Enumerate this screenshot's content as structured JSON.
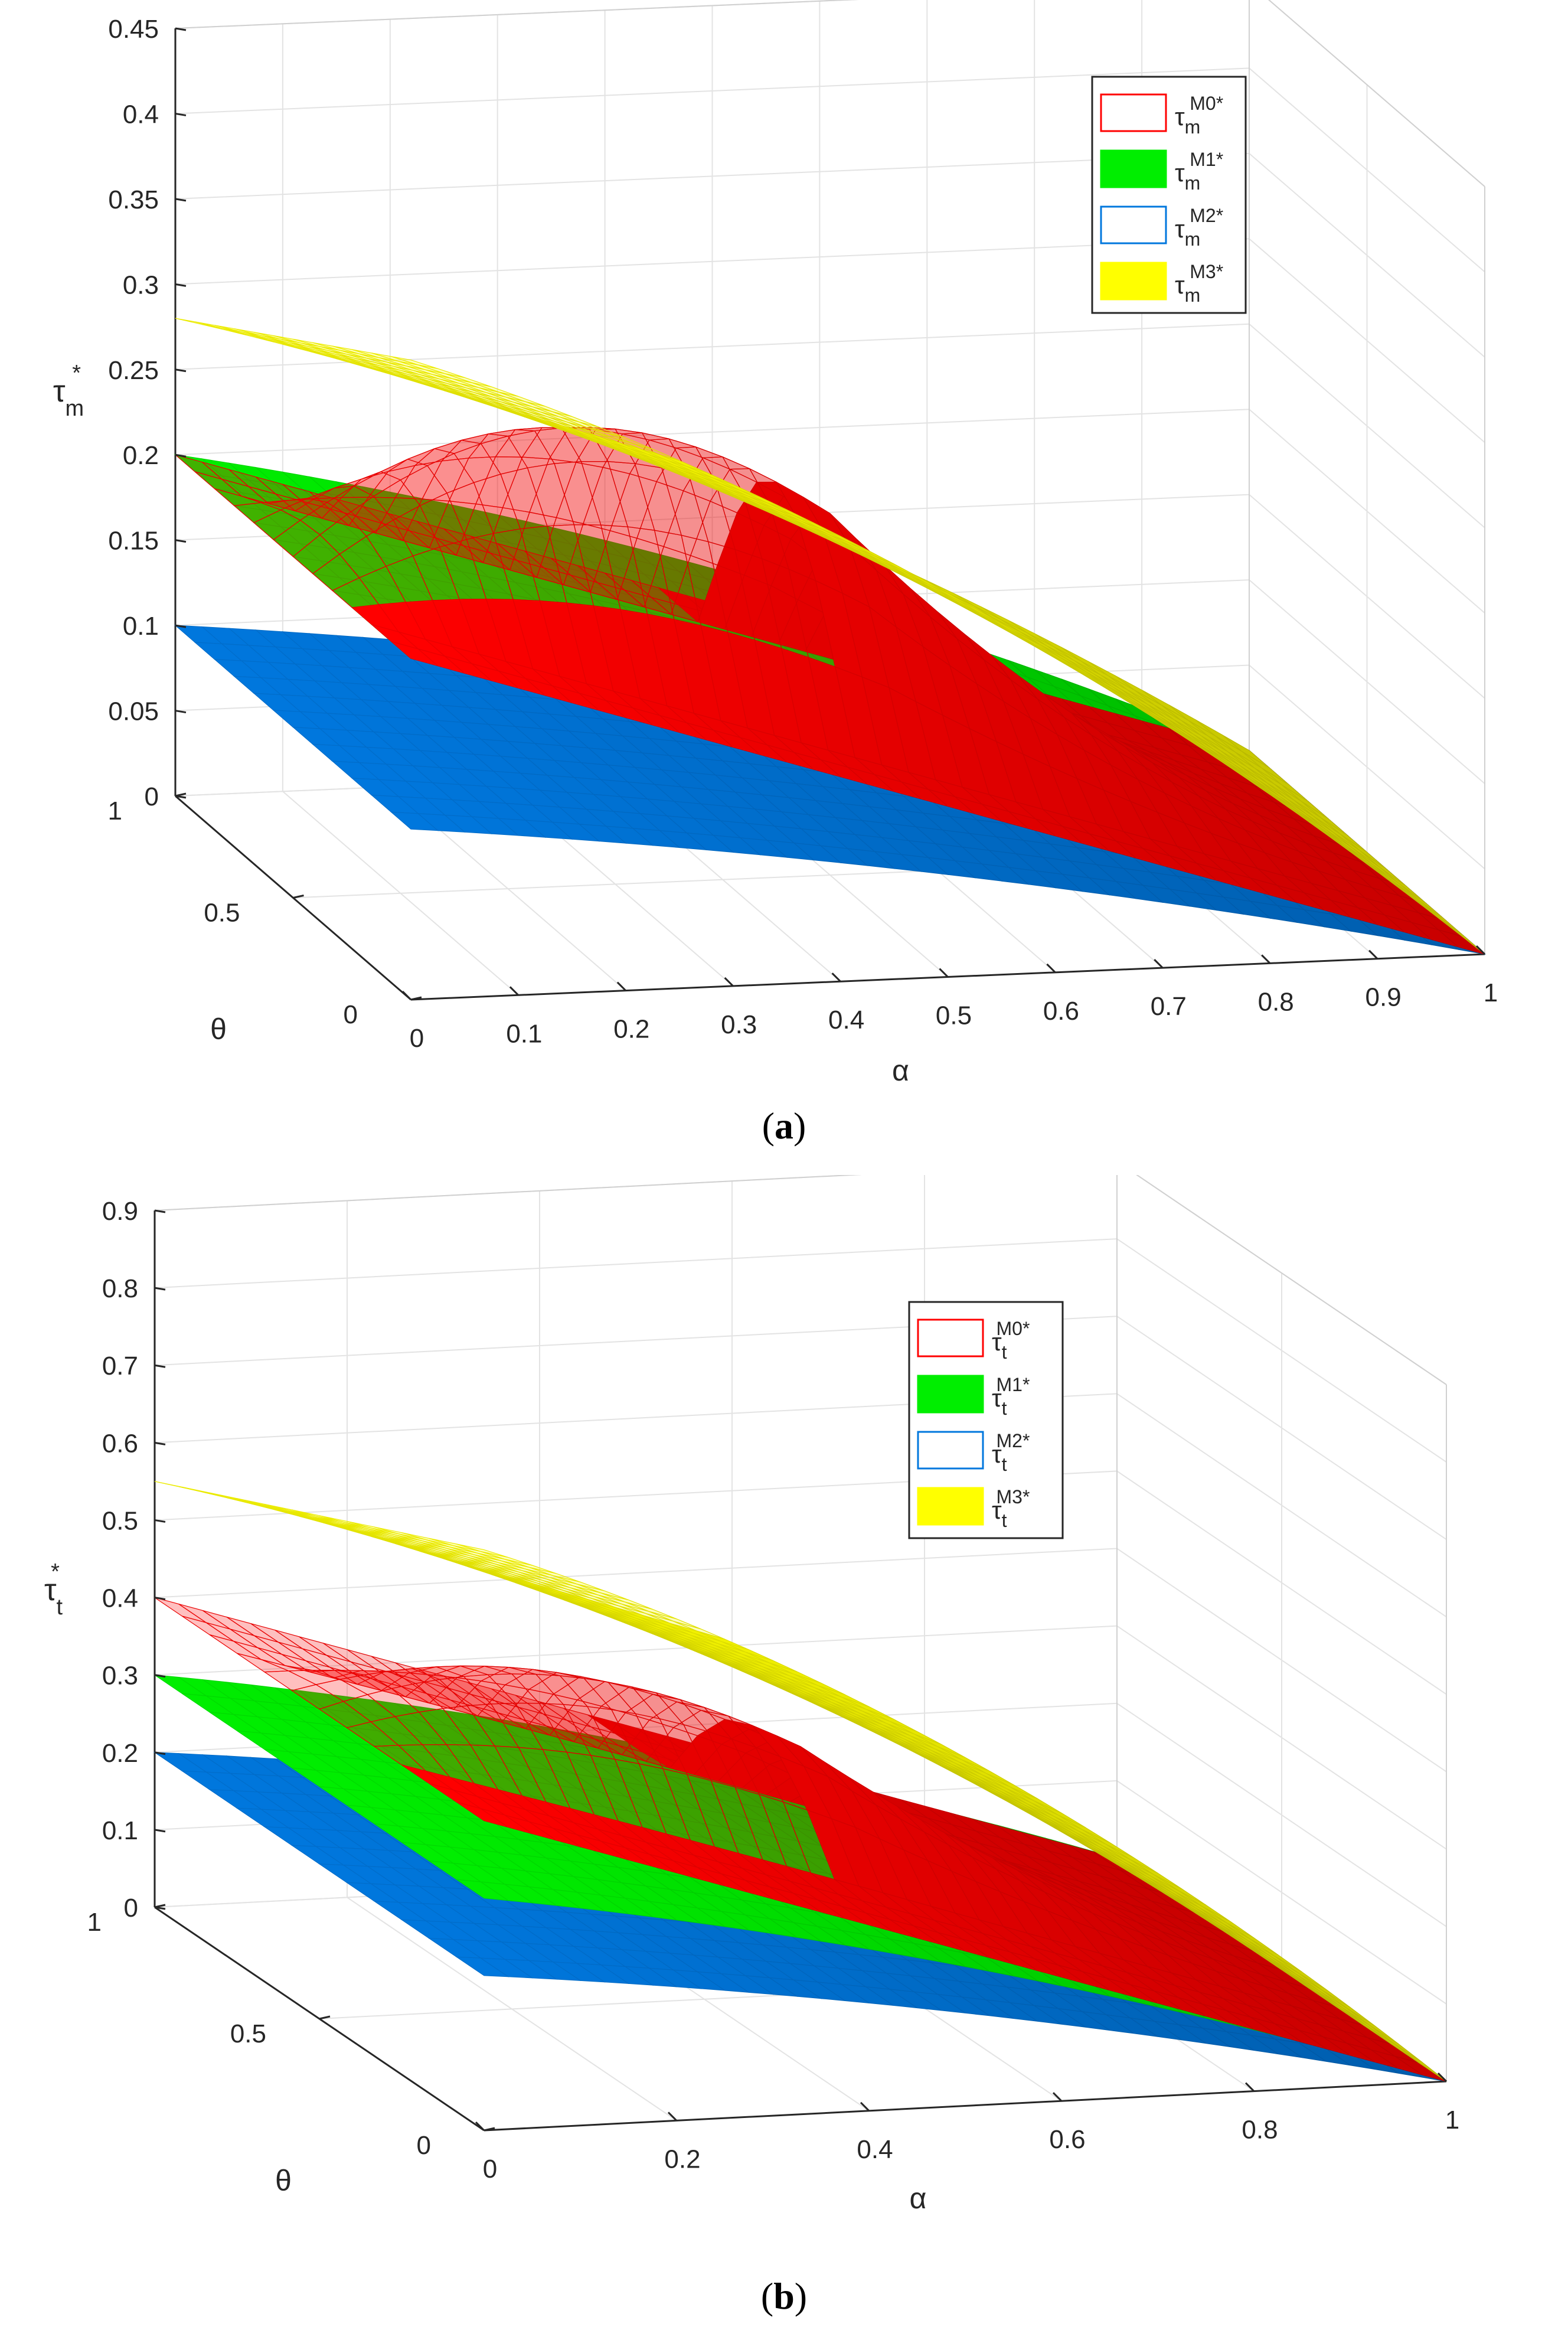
{
  "chart_data": [
    {
      "panel": "a",
      "type": "surface",
      "caption_letter": "a",
      "zlabel": "τ",
      "zlabel_sub": "m",
      "zlabel_sup": "*",
      "xlabel": "α",
      "ylabel": "θ",
      "xlim": [
        0,
        1
      ],
      "ylim": [
        0,
        1
      ],
      "zlim": [
        0,
        0.45
      ],
      "z_ticks": [
        "0",
        "0.05",
        "0.1",
        "0.15",
        "0.2",
        "0.25",
        "0.3",
        "0.35",
        "0.4",
        "0.45"
      ],
      "x_ticks": [
        "0",
        "0.1",
        "0.2",
        "0.3",
        "0.4",
        "0.5",
        "0.6",
        "0.7",
        "0.8",
        "0.9",
        "1"
      ],
      "y_ticks": [
        "0",
        "0.5",
        "1"
      ],
      "grid": true,
      "legend_position": "top-right",
      "series": [
        {
          "name": "M0",
          "base": "τ",
          "sub": "m",
          "sup": "M0*",
          "color": "#ff0000",
          "z_at_alpha0": {
            "theta0": 0.2,
            "theta1": 0.2
          },
          "z_peak": 0.34,
          "z_at_alpha1": 0
        },
        {
          "name": "M1",
          "base": "τ",
          "sub": "m",
          "sup": "M1*",
          "color": "#00ee00",
          "z_at_alpha0": {
            "theta0": 0.2,
            "theta1": 0.2
          },
          "z_at_alpha1": 0
        },
        {
          "name": "M2",
          "base": "τ",
          "sub": "m",
          "sup": "M2*",
          "color": "#0077dd",
          "z_at_alpha0": {
            "theta0": 0.1,
            "theta1": 0.1
          },
          "z_at_alpha1": 0
        },
        {
          "name": "M3",
          "base": "τ",
          "sub": "m",
          "sup": "M3*",
          "color": "#ffff00",
          "z_at_alpha0": {
            "theta0": 0.375,
            "theta1": 0.28
          },
          "z_at_alpha1": 0
        }
      ]
    },
    {
      "panel": "b",
      "type": "surface",
      "caption_letter": "b",
      "zlabel": "τ",
      "zlabel_sub": "t",
      "zlabel_sup": "*",
      "xlabel": "α",
      "ylabel": "θ",
      "xlim": [
        0,
        1
      ],
      "ylim": [
        0,
        1
      ],
      "zlim": [
        0,
        0.9
      ],
      "z_ticks": [
        "0",
        "0.1",
        "0.2",
        "0.3",
        "0.4",
        "0.5",
        "0.6",
        "0.7",
        "0.8",
        "0.9"
      ],
      "x_ticks": [
        "0",
        "0.2",
        "0.4",
        "0.6",
        "0.8",
        "1"
      ],
      "y_ticks": [
        "0",
        "0.5",
        "1"
      ],
      "grid": true,
      "legend_position": "top-right",
      "series": [
        {
          "name": "M0",
          "base": "τ",
          "sub": "t",
          "sup": "M0*",
          "color": "#ff0000",
          "z_at_alpha0": {
            "theta0": 0.4,
            "theta1": 0.4
          },
          "z_peak": 0.55,
          "z_at_alpha1": 0
        },
        {
          "name": "M1",
          "base": "τ",
          "sub": "t",
          "sup": "M1*",
          "color": "#00ee00",
          "z_at_alpha0": {
            "theta0": 0.3,
            "theta1": 0.3
          },
          "z_at_alpha1": 0
        },
        {
          "name": "M2",
          "base": "τ",
          "sub": "t",
          "sup": "M2*",
          "color": "#0077dd",
          "z_at_alpha0": {
            "theta0": 0.2,
            "theta1": 0.2
          },
          "z_at_alpha1": 0
        },
        {
          "name": "M3",
          "base": "τ",
          "sub": "t",
          "sup": "M3*",
          "color": "#ffff00",
          "z_at_alpha0": {
            "theta0": 0.75,
            "theta1": 0.55
          },
          "z_at_alpha1": 0
        }
      ]
    }
  ]
}
